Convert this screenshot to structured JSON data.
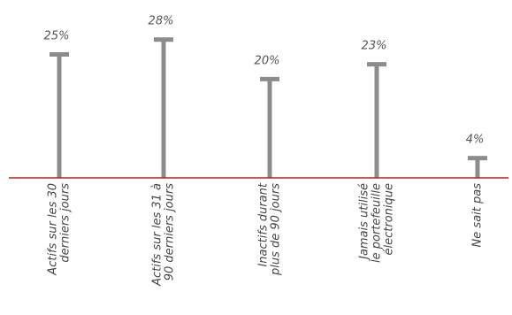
{
  "chart_data": {
    "type": "bar",
    "categories": [
      [
        "Actifs sur les 30",
        "derniers jours"
      ],
      [
        "Actifs sur les 31 à",
        "90 derniers jours"
      ],
      [
        "Inactifs durant",
        "plus de 90 jours"
      ],
      [
        "Jamais utilisé",
        "le portefeuille",
        "électronique"
      ],
      [
        "Ne sait pas"
      ]
    ],
    "values": [
      25,
      28,
      20,
      23,
      4
    ],
    "value_labels": [
      "25%",
      "28%",
      "20%",
      "23%",
      "4%"
    ],
    "ylim": [
      0,
      30
    ],
    "grid": false,
    "colors": {
      "bar": "#8c8c8c",
      "baseline": "#b22222",
      "label": "#555555"
    }
  }
}
